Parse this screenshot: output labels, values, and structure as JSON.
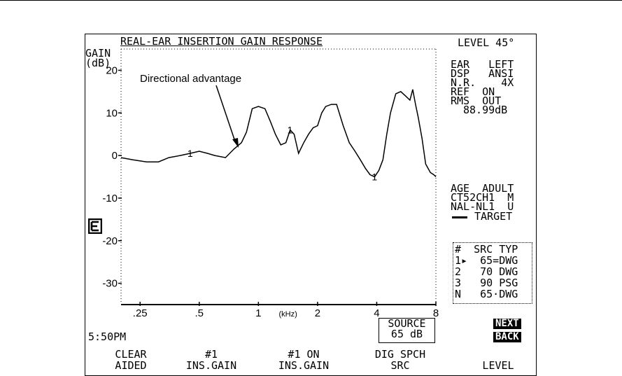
{
  "screen": {
    "title": "REAL-EAR INSERTION GAIN RESPONSE",
    "level_label": "LEVEL 45°",
    "y_axis_label_line1": "GAIN",
    "y_axis_label_line2": "(dB)",
    "x_unit": "(kHz)",
    "annotation": "Directional advantage",
    "curve_label": "1",
    "time": "5:50PM",
    "source_label": "SOURCE",
    "source_value": "65 dB",
    "next_button": "NEXT",
    "back_button": "BACK"
  },
  "settings": {
    "ear_line": "EAR   LEFT",
    "dsp_line": "DSP   ANSI",
    "nr_line": "N.R.    4X",
    "ref_line": "REF  ON",
    "rms_line": "RMS  OUT",
    "rms_value": "88.99dB",
    "age_line": "AGE  ADULT",
    "ct_line": "CT52CH1  M",
    "nal_line": "NAL-NL1  U",
    "target_line": "TARGET"
  },
  "curves_table": {
    "header": "#  SRC TYP",
    "rows": [
      "1▸  65=DWG",
      "2   70 DWG",
      "3   90 PSG",
      "N   65·DWG"
    ]
  },
  "softkeys": [
    {
      "line1": "CLEAR",
      "line2": "AIDED"
    },
    {
      "line1": "#1",
      "line2": "INS.GAIN"
    },
    {
      "line1": "#1 ON",
      "line2": "INS.GAIN"
    },
    {
      "line1": "DIG SPCH",
      "line2": "SRC"
    },
    {
      "line1": "",
      "line2": "LEVEL"
    }
  ],
  "chart_data": {
    "type": "line",
    "title": "REAL-EAR INSERTION GAIN RESPONSE",
    "xlabel": "(kHz)",
    "ylabel": "GAIN (dB)",
    "x_scale": "log",
    "xlim": [
      0.2,
      8
    ],
    "ylim": [
      -35,
      25
    ],
    "y_ticks": [
      20,
      10,
      0,
      -10,
      -20,
      -30
    ],
    "x_ticks": [
      {
        "value": 0.25,
        "label": ".25"
      },
      {
        "value": 0.5,
        "label": ".5"
      },
      {
        "value": 1,
        "label": "1"
      },
      {
        "value": 2,
        "label": "2"
      },
      {
        "value": 4,
        "label": "4"
      },
      {
        "value": 8,
        "label": "8"
      }
    ],
    "series": [
      {
        "name": "1",
        "x": [
          0.2,
          0.23,
          0.27,
          0.31,
          0.35,
          0.4,
          0.45,
          0.5,
          0.55,
          0.6,
          0.68,
          0.75,
          0.82,
          0.87,
          0.93,
          1.0,
          1.08,
          1.15,
          1.22,
          1.3,
          1.38,
          1.45,
          1.52,
          1.6,
          1.7,
          1.8,
          1.9,
          2.0,
          2.1,
          2.2,
          2.35,
          2.5,
          2.7,
          2.9,
          3.1,
          3.3,
          3.5,
          3.7,
          3.9,
          4.1,
          4.3,
          4.5,
          4.7,
          5.0,
          5.3,
          5.6,
          5.9,
          6.1,
          6.3,
          6.5,
          6.8,
          7.1,
          7.5,
          7.8,
          8.0
        ],
        "y": [
          -0.5,
          -1.0,
          -1.5,
          -1.5,
          -0.5,
          0.0,
          0.5,
          1.0,
          0.5,
          0.0,
          -0.5,
          1.5,
          3.0,
          5.5,
          11.0,
          11.5,
          11.0,
          8.0,
          5.0,
          2.5,
          3.0,
          6.0,
          5.0,
          0.5,
          3.0,
          5.0,
          6.5,
          7.0,
          10.0,
          11.5,
          12.0,
          12.0,
          7.0,
          3.0,
          1.0,
          -1.0,
          -3.0,
          -4.5,
          -5.0,
          -3.5,
          -1.0,
          5.0,
          10.0,
          14.5,
          15.0,
          14.0,
          13.0,
          15.5,
          12.0,
          9.0,
          4.0,
          -2.0,
          -4.0,
          -4.5,
          -5.0
        ]
      }
    ]
  }
}
